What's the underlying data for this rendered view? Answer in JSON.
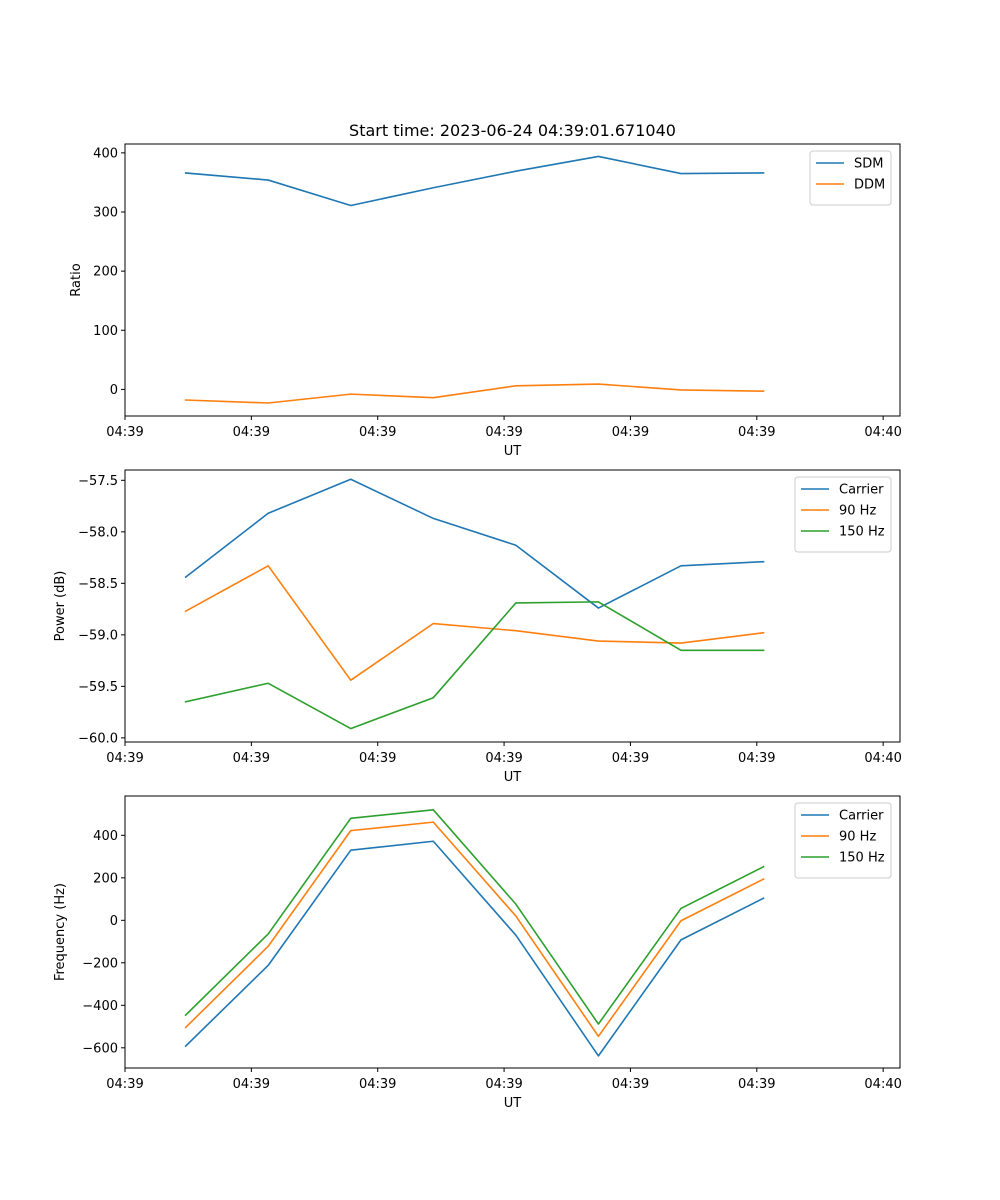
{
  "figure": {
    "title": "Start time: 2023-06-24 04:39:01.671040"
  },
  "colors": {
    "series_1": "#1f77b4",
    "series_2": "#ff7f0e",
    "series_3": "#2ca02c"
  },
  "chart_data": [
    {
      "type": "line",
      "title": "Start time: 2023-06-24 04:39:01.671040",
      "xlabel": "UT",
      "ylabel": "Ratio",
      "xlim": [
        0,
        9.2
      ],
      "x_ticks": [
        0.0,
        1.5,
        3.0,
        4.5,
        6.0,
        7.5,
        9.0
      ],
      "x_tick_labels": [
        "04:39",
        "04:39",
        "04:39",
        "04:39",
        "04:39",
        "04:39",
        "04:40"
      ],
      "ylim": [
        -45,
        415
      ],
      "y_ticks": [
        0,
        100,
        200,
        300,
        400
      ],
      "y_tick_labels": [
        "0",
        "100",
        "200",
        "300",
        "400"
      ],
      "x": [
        0.72,
        1.7,
        2.68,
        3.66,
        4.64,
        5.62,
        6.6,
        7.58
      ],
      "series": [
        {
          "name": "SDM",
          "color": "#1f77b4",
          "values": [
            366,
            354,
            311,
            341,
            369,
            394,
            365,
            366
          ]
        },
        {
          "name": "DDM",
          "color": "#ff7f0e",
          "values": [
            -18,
            -23,
            -8,
            -14,
            6,
            9,
            -1,
            -3
          ]
        }
      ],
      "grid": false,
      "legend": "upper right"
    },
    {
      "type": "line",
      "title": "",
      "xlabel": "UT",
      "ylabel": "Power (dB)",
      "xlim": [
        0,
        9.2
      ],
      "x_ticks": [
        0.0,
        1.5,
        3.0,
        4.5,
        6.0,
        7.5,
        9.0
      ],
      "x_tick_labels": [
        "04:39",
        "04:39",
        "04:39",
        "04:39",
        "04:39",
        "04:39",
        "04:40"
      ],
      "ylim": [
        -60.04,
        -57.4
      ],
      "y_ticks": [
        -60.0,
        -59.5,
        -59.0,
        -58.5,
        -58.0,
        -57.5
      ],
      "y_tick_labels": [
        "−60.0",
        "−59.5",
        "−59.0",
        "−58.5",
        "−58.0",
        "−57.5"
      ],
      "x": [
        0.72,
        1.7,
        2.68,
        3.66,
        4.64,
        5.62,
        6.6,
        7.58
      ],
      "series": [
        {
          "name": "Carrier",
          "color": "#1f77b4",
          "values": [
            -58.44,
            -57.82,
            -57.49,
            -57.87,
            -58.13,
            -58.74,
            -58.33,
            -58.29
          ]
        },
        {
          "name": "90 Hz",
          "color": "#ff7f0e",
          "values": [
            -58.77,
            -58.33,
            -59.44,
            -58.89,
            -58.96,
            -59.06,
            -59.08,
            -58.98
          ]
        },
        {
          "name": "150 Hz",
          "color": "#2ca02c",
          "values": [
            -59.65,
            -59.47,
            -59.91,
            -59.61,
            -58.69,
            -58.68,
            -59.15,
            -59.15
          ]
        }
      ],
      "grid": false,
      "legend": "upper right"
    },
    {
      "type": "line",
      "title": "",
      "xlabel": "UT",
      "ylabel": "Frequency (Hz)",
      "xlim": [
        0,
        9.2
      ],
      "x_ticks": [
        0.0,
        1.5,
        3.0,
        4.5,
        6.0,
        7.5,
        9.0
      ],
      "x_tick_labels": [
        "04:39",
        "04:39",
        "04:39",
        "04:39",
        "04:39",
        "04:39",
        "04:40"
      ],
      "ylim": [
        -695,
        585
      ],
      "y_ticks": [
        -600,
        -400,
        -200,
        0,
        200,
        400
      ],
      "y_tick_labels": [
        "−600",
        "−400",
        "−200",
        "0",
        "200",
        "400"
      ],
      "x": [
        0.72,
        1.7,
        2.68,
        3.66,
        4.64,
        5.62,
        6.6,
        7.58
      ],
      "series": [
        {
          "name": "Carrier",
          "color": "#1f77b4",
          "values": [
            -592,
            -212,
            330,
            372,
            -70,
            -638,
            -92,
            104
          ]
        },
        {
          "name": "90 Hz",
          "color": "#ff7f0e",
          "values": [
            -504,
            -122,
            422,
            462,
            20,
            -546,
            -2,
            194
          ]
        },
        {
          "name": "150 Hz",
          "color": "#2ca02c",
          "values": [
            -446,
            -64,
            480,
            520,
            76,
            -488,
            56,
            252
          ]
        }
      ],
      "grid": false,
      "legend": "upper right"
    }
  ]
}
